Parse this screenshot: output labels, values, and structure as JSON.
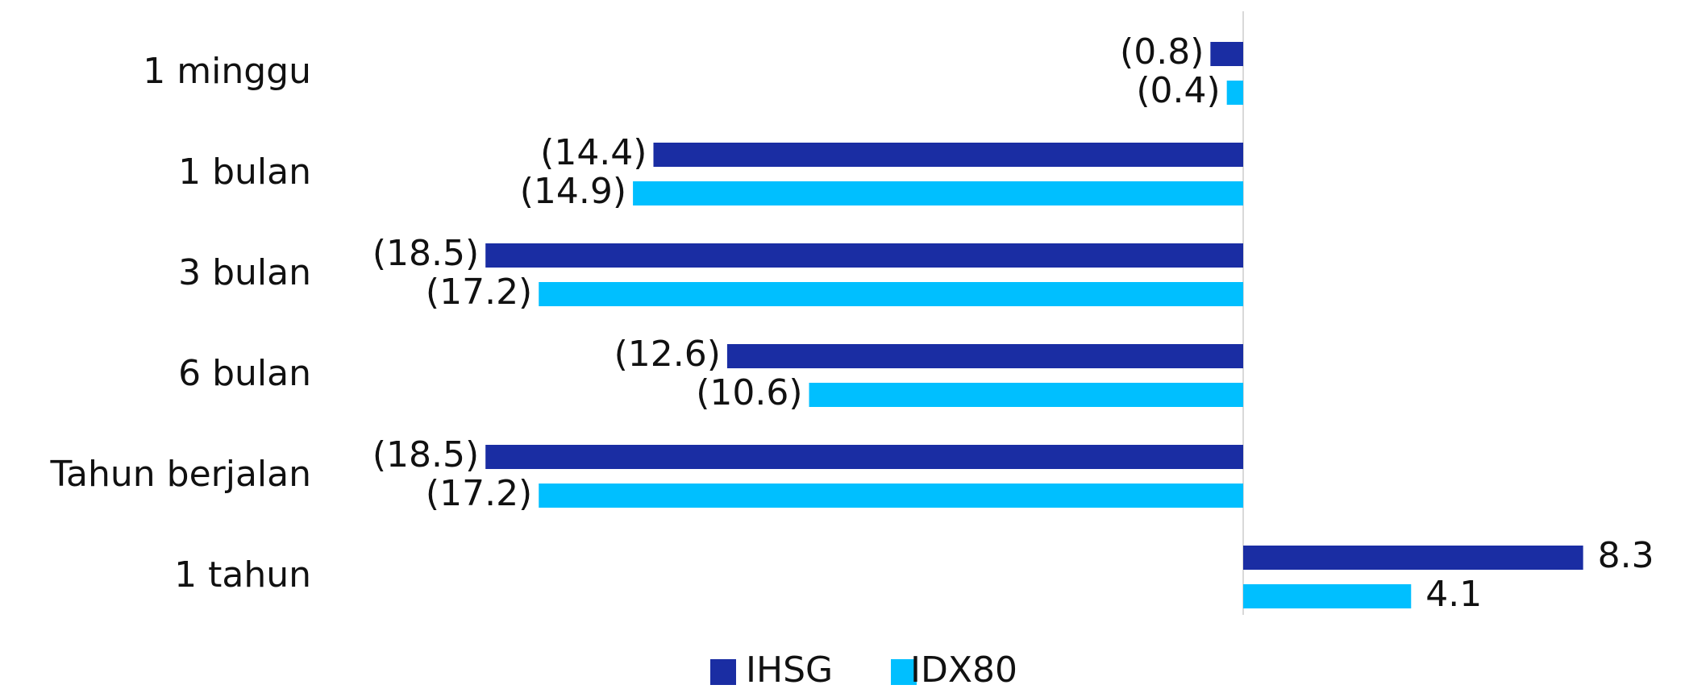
{
  "chart_data": {
    "type": "bar",
    "orientation": "horizontal",
    "categories": [
      "1 minggu",
      "1 bulan",
      "3 bulan",
      "6 bulan",
      "Tahun berjalan",
      "1 tahun"
    ],
    "series": [
      {
        "name": "IHSG",
        "color": "#1A2DA3",
        "values": [
          -0.8,
          -14.4,
          -18.5,
          -12.6,
          -18.5,
          8.3
        ],
        "labels": [
          "(0.8)",
          "(14.4)",
          "(18.5)",
          "(12.6)",
          "(18.5)",
          "8.3"
        ]
      },
      {
        "name": "IDX80",
        "color": "#00BFFF",
        "values": [
          -0.4,
          -14.9,
          -17.2,
          -10.6,
          -17.2,
          4.1
        ],
        "labels": [
          "(0.4)",
          "(14.9)",
          "(17.2)",
          "(10.6)",
          "(17.2)",
          "4.1"
        ]
      }
    ],
    "title": "",
    "xlabel": "",
    "ylabel": "",
    "xlim": [
      -20,
      10
    ],
    "grid": false,
    "legend_position": "bottom"
  }
}
